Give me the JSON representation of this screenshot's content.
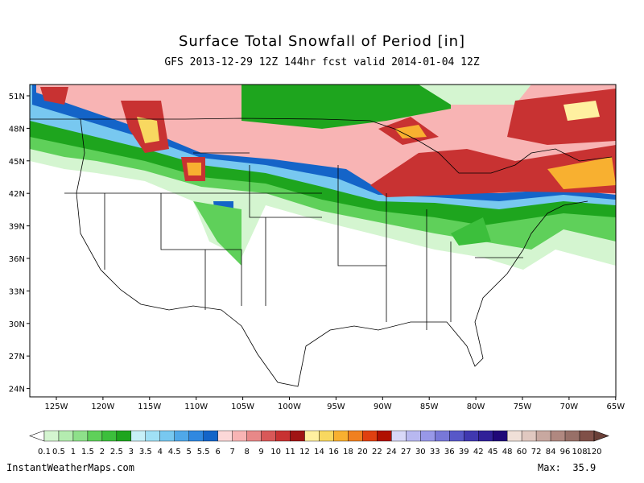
{
  "header": {
    "title": "Surface Total Snowfall of Period [in]",
    "subtitle": "GFS 2013-12-29 12Z 144hr fcst valid 2014-01-04 12Z"
  },
  "map": {
    "lat_labels": [
      "51N",
      "48N",
      "45N",
      "42N",
      "39N",
      "36N",
      "33N",
      "30N",
      "27N",
      "24N"
    ],
    "lon_labels": [
      "125W",
      "120W",
      "115W",
      "110W",
      "105W",
      "100W",
      "95W",
      "90W",
      "85W",
      "80W",
      "75W",
      "70W",
      "65W"
    ]
  },
  "colorbar": {
    "levels": [
      0.1,
      0.5,
      1,
      1.5,
      2,
      2.5,
      3,
      3.5,
      4,
      4.5,
      5,
      5.5,
      6,
      7,
      8,
      9,
      10,
      11,
      12,
      14,
      16,
      18,
      20,
      22,
      24,
      27,
      30,
      33,
      36,
      39,
      42,
      45,
      48,
      60,
      72,
      84,
      96,
      108,
      120
    ],
    "colors": [
      "#d4f5d0",
      "#b4ecb0",
      "#8ee08a",
      "#5fd05a",
      "#3cbf3c",
      "#1ea51e",
      "#c8f0f8",
      "#a0e0f5",
      "#78c8f0",
      "#50a8e8",
      "#3088e0",
      "#1464c8",
      "#fcd8d8",
      "#f8b4b4",
      "#e88888",
      "#d85858",
      "#c83232",
      "#a01414",
      "#fff0a0",
      "#f8d860",
      "#f8b030",
      "#f08020",
      "#e04010",
      "#b01000",
      "#d8d8f8",
      "#b8b8f0",
      "#9898e8",
      "#7878d8",
      "#5858c8",
      "#4038b0",
      "#302098",
      "#200878",
      "#f0e0d8",
      "#e0c8c0",
      "#c8a8a0",
      "#b08880",
      "#987068",
      "#805048"
    ],
    "under_color": "#ffffff",
    "over_color": "#6a4038"
  },
  "footer": {
    "source": "InstantWeatherMaps.com",
    "max": "Max:  35.9"
  }
}
